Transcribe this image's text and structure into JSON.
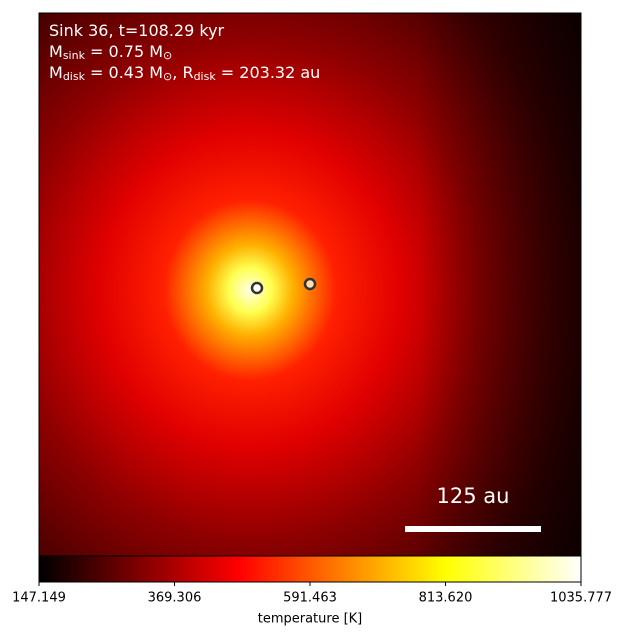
{
  "chart_data": {
    "type": "image",
    "annotations": [
      [
        {
          "text": "Sink 36, t=108.29 kyr"
        }
      ],
      [
        {
          "text": "M"
        },
        {
          "text": "sink",
          "sub": true
        },
        {
          "text": " = 0.75 M"
        },
        {
          "text": "⊙",
          "sub": true
        }
      ],
      [
        {
          "text": "M"
        },
        {
          "text": "disk",
          "sub": true
        },
        {
          "text": " = 0.43 M"
        },
        {
          "text": "⊙",
          "sub": true
        },
        {
          "text": ", R"
        },
        {
          "text": "disk",
          "sub": true
        },
        {
          "text": " = 203.32 au"
        }
      ]
    ],
    "scale_bar_label": "125 au",
    "colorbar": {
      "label": "temperature [K]",
      "lim": [
        147.149,
        1035.777
      ],
      "ticks": [
        147.149,
        369.306,
        591.463,
        {
          "value": 813.62,
          "label": "813.620"
        },
        1035.777
      ]
    }
  }
}
